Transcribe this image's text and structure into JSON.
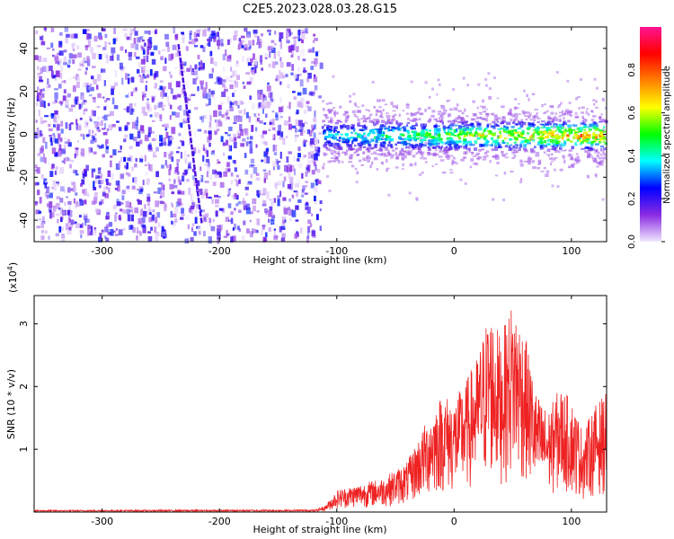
{
  "page_title": "C2E5.2023.028.03.28.G15",
  "chart_data": [
    {
      "type": "heatmap",
      "xlabel": "Height of straight line (km)",
      "ylabel": "Frequency (Hz)",
      "xlim": [
        -358,
        130
      ],
      "ylim": [
        -50,
        50
      ],
      "xticks": [
        -300,
        -200,
        -100,
        0,
        100
      ],
      "yticks": [
        -40,
        -20,
        0,
        20,
        40
      ],
      "colorbar": {
        "label": "Normalized spectral amplitude",
        "range": [
          0.0,
          1.0
        ],
        "ticks": [
          0.0,
          0.2,
          0.4,
          0.6,
          0.8
        ],
        "colormap": [
          "#f0e8ff",
          "#8a2be2",
          "#0000ff",
          "#00ffff",
          "#00ff00",
          "#ffff00",
          "#ff8000",
          "#ff0000",
          "#ff1493"
        ]
      },
      "regions": [
        {
          "x": [
            -358,
            -113
          ],
          "f": [
            -50,
            50
          ],
          "amplitude": [
            0.0,
            0.15
          ],
          "pattern": "noise"
        },
        {
          "x": [
            -113,
            130
          ],
          "f": [
            -8,
            8
          ],
          "amplitude": [
            0.1,
            0.9
          ],
          "pattern": "band near 0 Hz"
        }
      ],
      "line": {
        "x": [
          -235,
          -215
        ],
        "f": [
          42,
          -42
        ]
      }
    },
    {
      "type": "line",
      "xlabel": "Height of straight line (km)",
      "ylabel": "SNR (10 * v/v)",
      "yscale_label": "(x10",
      "yscale_exp": "4",
      "yscale_close": ")",
      "xlim": [
        -358,
        130
      ],
      "ylim": [
        0,
        3.45
      ],
      "xticks": [
        -300,
        -200,
        -100,
        0,
        100
      ],
      "yticks": [
        1,
        2,
        3
      ],
      "color": "#ee2222",
      "envelope": [
        {
          "x": -358,
          "y": 0.02
        },
        {
          "x": -120,
          "y": 0.03
        },
        {
          "x": -110,
          "y": 0.1
        },
        {
          "x": -100,
          "y": 0.35
        },
        {
          "x": -80,
          "y": 0.45
        },
        {
          "x": -60,
          "y": 0.55
        },
        {
          "x": -40,
          "y": 0.8
        },
        {
          "x": -30,
          "y": 1.2
        },
        {
          "x": -20,
          "y": 1.6
        },
        {
          "x": -10,
          "y": 1.9
        },
        {
          "x": 0,
          "y": 1.8
        },
        {
          "x": 10,
          "y": 2.1
        },
        {
          "x": 20,
          "y": 2.5
        },
        {
          "x": 30,
          "y": 3.25
        },
        {
          "x": 40,
          "y": 2.8
        },
        {
          "x": 50,
          "y": 3.4
        },
        {
          "x": 60,
          "y": 2.9
        },
        {
          "x": 70,
          "y": 1.9
        },
        {
          "x": 80,
          "y": 1.6
        },
        {
          "x": 90,
          "y": 2.0
        },
        {
          "x": 100,
          "y": 1.8
        },
        {
          "x": 110,
          "y": 1.3
        },
        {
          "x": 120,
          "y": 1.7
        },
        {
          "x": 130,
          "y": 1.9
        }
      ]
    }
  ]
}
